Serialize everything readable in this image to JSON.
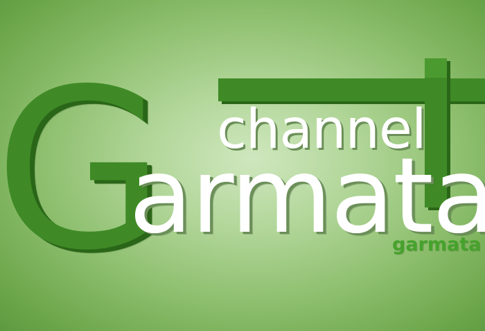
{
  "logo": {
    "big_letter": "G",
    "word_rest": "armata",
    "channel": "channel",
    "cross_letter": "T",
    "url_fragment": "garmata"
  },
  "colors": {
    "background": "#9fcb85",
    "brand_green": "#3f8a26",
    "text_white": "#ffffff"
  }
}
